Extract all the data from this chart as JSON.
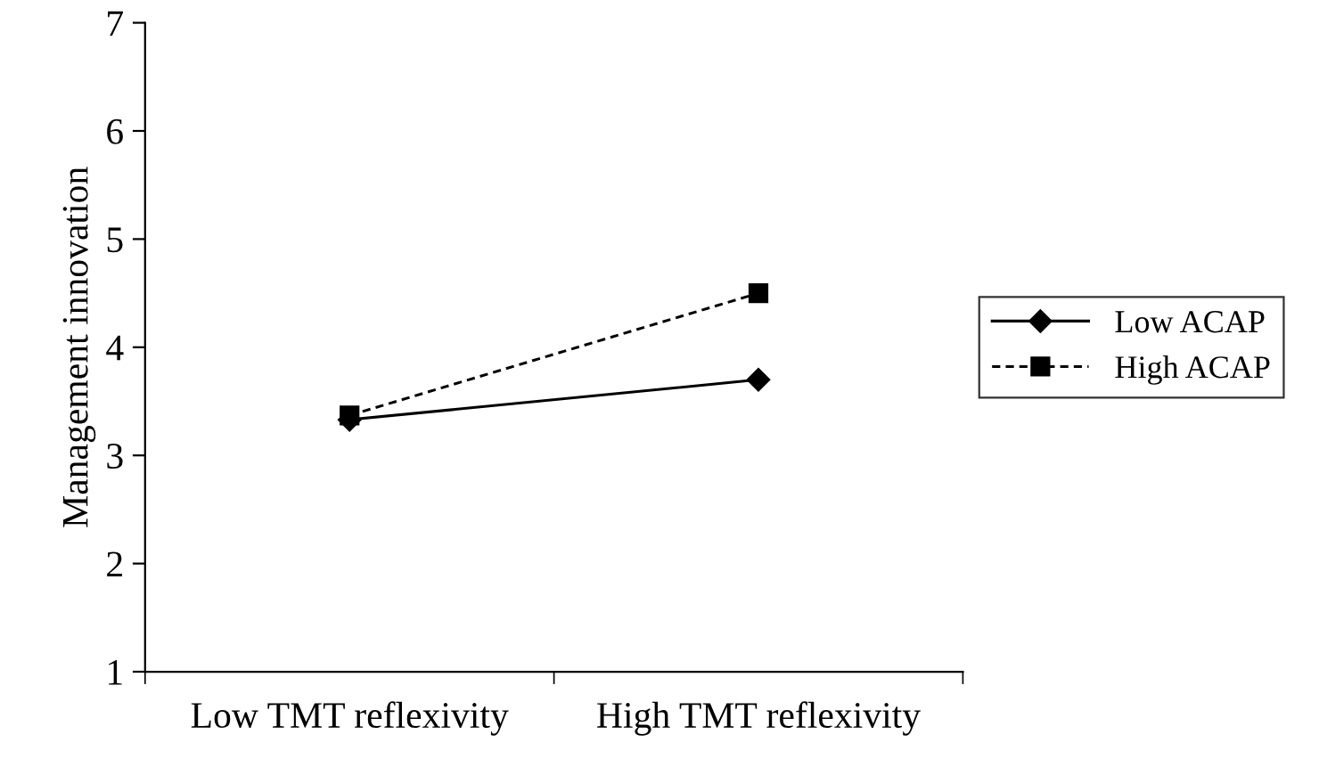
{
  "chart_data": {
    "type": "line",
    "ylabel": "Management innovation",
    "categories": [
      "Low TMT reflexivity",
      "High TMT reflexivity"
    ],
    "series": [
      {
        "name": "Low ACAP",
        "color": "#000000",
        "values": [
          3.33,
          3.7
        ],
        "marker": "diamond",
        "line_style": "solid"
      },
      {
        "name": "High ACAP",
        "color": "#000000",
        "values": [
          3.37,
          4.5
        ],
        "marker": "square",
        "line_style": "dashed"
      }
    ],
    "ylim": [
      1,
      7
    ],
    "yticks": [
      1,
      2,
      3,
      4,
      5,
      6,
      7
    ],
    "grid": false,
    "legend": "right"
  }
}
